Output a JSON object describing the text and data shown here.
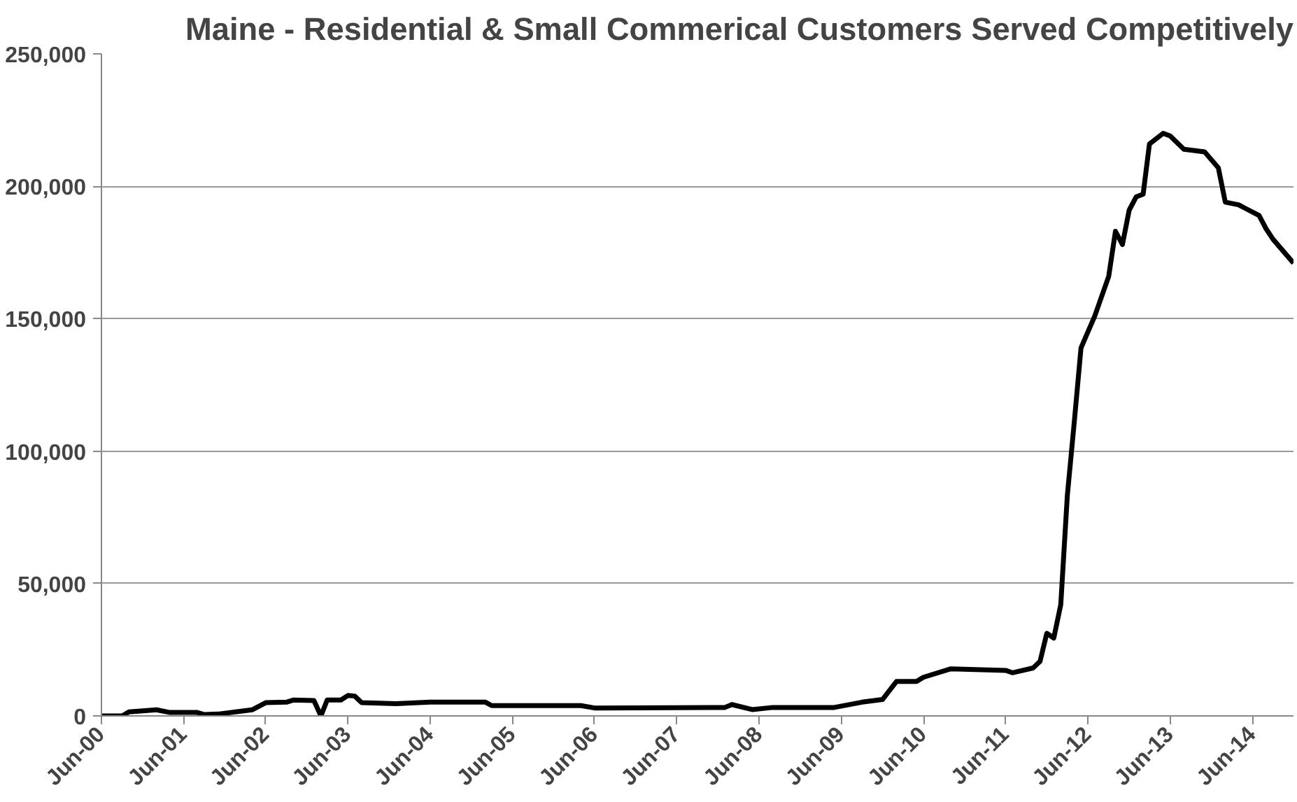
{
  "chart_data": {
    "type": "line",
    "title": "Maine - Residential & Small Commerical Customers Served Competitively",
    "x": [
      "2000-06",
      "2000-09",
      "2000-10",
      "2001-02",
      "2001-04",
      "2001-08",
      "2001-09",
      "2001-11",
      "2002-04",
      "2002-06",
      "2002-09",
      "2002-10",
      "2003-01",
      "2003-02",
      "2003-03",
      "2003-05",
      "2003-06",
      "2003-07",
      "2003-08",
      "2004-01",
      "2004-06",
      "2005-02",
      "2005-03",
      "2006-04",
      "2006-06",
      "2008-01",
      "2008-02",
      "2008-05",
      "2008-08",
      "2009-05",
      "2009-09",
      "2009-12",
      "2010-02",
      "2010-05",
      "2010-06",
      "2010-10",
      "2011-06",
      "2011-07",
      "2011-10",
      "2011-11",
      "2011-12",
      "2012-01",
      "2012-02",
      "2012-03",
      "2012-04",
      "2012-05",
      "2012-07",
      "2012-09",
      "2012-10",
      "2012-11",
      "2012-12",
      "2013-01",
      "2013-02",
      "2013-03",
      "2013-05",
      "2013-06",
      "2013-08",
      "2013-11",
      "2014-01",
      "2014-02",
      "2014-04",
      "2014-07",
      "2014-08",
      "2014-09",
      "2014-12"
    ],
    "series": [
      {
        "color": "#000000",
        "values": [
          0,
          0,
          1500,
          2300,
          1300,
          1300,
          500,
          700,
          2300,
          5000,
          5200,
          6000,
          5800,
          0,
          6000,
          6000,
          7700,
          7500,
          5000,
          4600,
          5200,
          5200,
          3900,
          3900,
          3000,
          3200,
          4300,
          2400,
          3200,
          3200,
          5200,
          6200,
          13000,
          13000,
          14600,
          17800,
          17200,
          16300,
          18100,
          20600,
          31200,
          29400,
          42000,
          83000,
          111000,
          139000,
          151000,
          166000,
          183000,
          178000,
          191000,
          196000,
          197000,
          216000,
          220000,
          219000,
          214000,
          213000,
          207000,
          194000,
          193000,
          189000,
          184000,
          180000,
          171000
        ]
      }
    ],
    "xlim": [
      "2000-06",
      "2014-12"
    ],
    "xticks": [
      {
        "value": "2000-06",
        "label": "Jun-00"
      },
      {
        "value": "2001-06",
        "label": "Jun-01"
      },
      {
        "value": "2002-06",
        "label": "Jun-02"
      },
      {
        "value": "2003-06",
        "label": "Jun-03"
      },
      {
        "value": "2004-06",
        "label": "Jun-04"
      },
      {
        "value": "2005-06",
        "label": "Jun-05"
      },
      {
        "value": "2006-06",
        "label": "Jun-06"
      },
      {
        "value": "2007-06",
        "label": "Jun-07"
      },
      {
        "value": "2008-06",
        "label": "Jun-08"
      },
      {
        "value": "2009-06",
        "label": "Jun-09"
      },
      {
        "value": "2010-06",
        "label": "Jun-10"
      },
      {
        "value": "2011-06",
        "label": "Jun-11"
      },
      {
        "value": "2012-06",
        "label": "Jun-12"
      },
      {
        "value": "2013-06",
        "label": "Jun-13"
      },
      {
        "value": "2014-06",
        "label": "Jun-14"
      }
    ],
    "ylim": [
      0,
      250000
    ],
    "yticks": [
      {
        "value": 0,
        "label": "0"
      },
      {
        "value": 50000,
        "label": "50,000"
      },
      {
        "value": 100000,
        "label": "100,000"
      },
      {
        "value": 150000,
        "label": "150,000"
      },
      {
        "value": 200000,
        "label": "200,000"
      },
      {
        "value": 250000,
        "label": "250,000"
      }
    ],
    "grid": "y",
    "marker": "none",
    "line_style": "solid"
  }
}
